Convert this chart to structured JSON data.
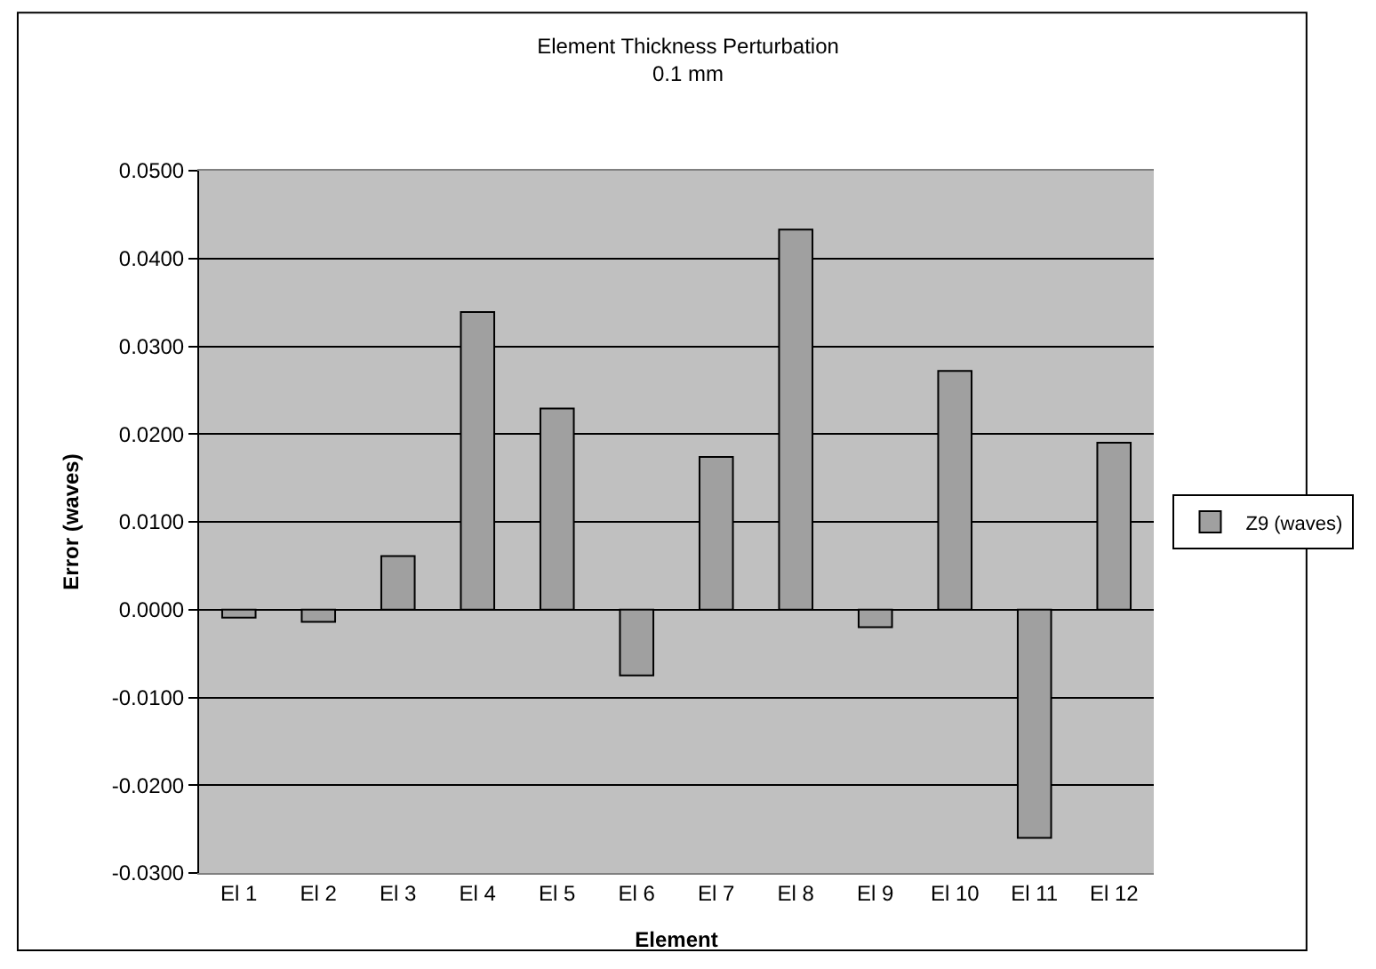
{
  "chart_data": {
    "type": "bar",
    "title": "Element Thickness Perturbation",
    "subtitle": "0.1 mm",
    "xlabel": "Element",
    "ylabel": "Error (waves)",
    "categories": [
      "El 1",
      "El 2",
      "El 3",
      "El 4",
      "El 5",
      "El 6",
      "El 7",
      "El 8",
      "El 9",
      "El 10",
      "El 11",
      "El 12"
    ],
    "series": [
      {
        "name": "Z9 (waves)",
        "color": "#a0a0a0",
        "values": [
          -0.0009,
          -0.0014,
          0.0061,
          0.0339,
          0.0229,
          -0.0075,
          0.0174,
          0.0433,
          -0.002,
          0.0272,
          -0.026,
          0.019
        ]
      }
    ],
    "ylim": [
      -0.03,
      0.05
    ],
    "yticks": [
      {
        "value": -0.03,
        "label": "-0.0300"
      },
      {
        "value": -0.02,
        "label": "-0.0200"
      },
      {
        "value": -0.01,
        "label": "-0.0100"
      },
      {
        "value": 0,
        "label": "0.0000"
      },
      {
        "value": 0.01,
        "label": "0.0100"
      },
      {
        "value": 0.02,
        "label": "0.0200"
      },
      {
        "value": 0.03,
        "label": "0.0300"
      },
      {
        "value": 0.04,
        "label": "0.0400"
      },
      {
        "value": 0.05,
        "label": "0.0500"
      }
    ],
    "grid": "y",
    "legend": "right"
  }
}
